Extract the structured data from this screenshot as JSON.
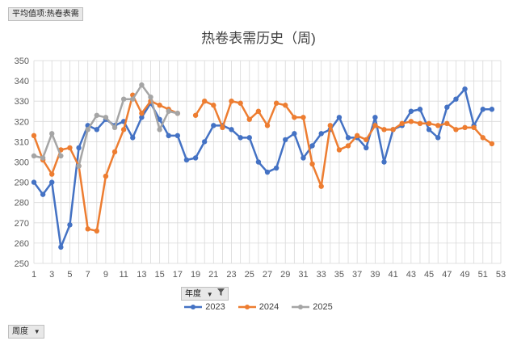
{
  "pivot_buttons": {
    "value_field": "平均值项:热卷表需",
    "legend_field": "年度",
    "axis_field": "周度"
  },
  "colors": {
    "2023": "#4472c4",
    "2024": "#ed7d31",
    "2025": "#a5a5a5",
    "grid": "#d9d9d9"
  },
  "chart_data": {
    "type": "line",
    "title": "热卷表需历史（周)",
    "xlabel": "",
    "ylabel": "",
    "ylim": [
      250,
      350
    ],
    "yticks": [
      250,
      260,
      270,
      280,
      290,
      300,
      310,
      320,
      330,
      340,
      350
    ],
    "xlim": [
      1,
      53
    ],
    "xticks": [
      1,
      3,
      5,
      7,
      9,
      11,
      13,
      15,
      17,
      19,
      21,
      23,
      25,
      27,
      29,
      31,
      33,
      35,
      37,
      39,
      41,
      43,
      45,
      47,
      49,
      51,
      53
    ],
    "grid": true,
    "legend_position": "bottom",
    "series": [
      {
        "name": "2023",
        "x": [
          1,
          2,
          3,
          4,
          5,
          6,
          7,
          8,
          9,
          10,
          11,
          12,
          13,
          14,
          15,
          16,
          17,
          18,
          19,
          20,
          21,
          22,
          23,
          24,
          25,
          26,
          27,
          28,
          29,
          30,
          31,
          32,
          33,
          34,
          35,
          36,
          37,
          38,
          39,
          40,
          41,
          42,
          43,
          44,
          45,
          46,
          47,
          48,
          49,
          50,
          51,
          52
        ],
        "values": [
          290,
          284,
          290,
          258,
          269,
          307,
          318,
          316,
          321,
          318,
          320,
          312,
          322,
          329,
          321,
          313,
          313,
          301,
          302,
          310,
          318,
          318,
          316,
          312,
          312,
          300,
          295,
          297,
          311,
          314,
          302,
          308,
          314,
          316,
          322,
          312,
          312,
          307,
          322,
          300,
          316,
          318,
          325,
          326,
          316,
          312,
          327,
          331,
          336,
          318,
          326,
          326
        ]
      },
      {
        "name": "2024",
        "x": [
          1,
          2,
          3,
          4,
          5,
          6,
          7,
          8,
          9,
          10,
          11,
          12,
          13,
          14,
          15,
          16,
          17,
          18,
          19,
          20,
          21,
          22,
          23,
          24,
          25,
          26,
          27,
          28,
          29,
          30,
          31,
          32,
          33,
          34,
          35,
          36,
          37,
          38,
          39,
          40,
          41,
          42,
          43,
          44,
          45,
          46,
          47,
          48,
          49,
          50,
          51,
          52
        ],
        "values": [
          313,
          301,
          294,
          306,
          307,
          298,
          267,
          266,
          293,
          305,
          316,
          333,
          324,
          330,
          328,
          326,
          324,
          null,
          323,
          330,
          328,
          317,
          330,
          329,
          321,
          325,
          318,
          329,
          328,
          322,
          322,
          299,
          288,
          318,
          306,
          308,
          313,
          311,
          318,
          316,
          316,
          319,
          320,
          319,
          319,
          318,
          319,
          316,
          317,
          317,
          312,
          309
        ]
      },
      {
        "name": "2025",
        "x": [
          1,
          2,
          3,
          4,
          5,
          6,
          7,
          8,
          9,
          10,
          11,
          12,
          13,
          14,
          15,
          16,
          17
        ],
        "values": [
          303,
          302,
          314,
          303,
          null,
          298,
          316,
          323,
          322,
          317,
          331,
          331,
          338,
          332,
          316,
          325,
          324
        ]
      }
    ]
  }
}
